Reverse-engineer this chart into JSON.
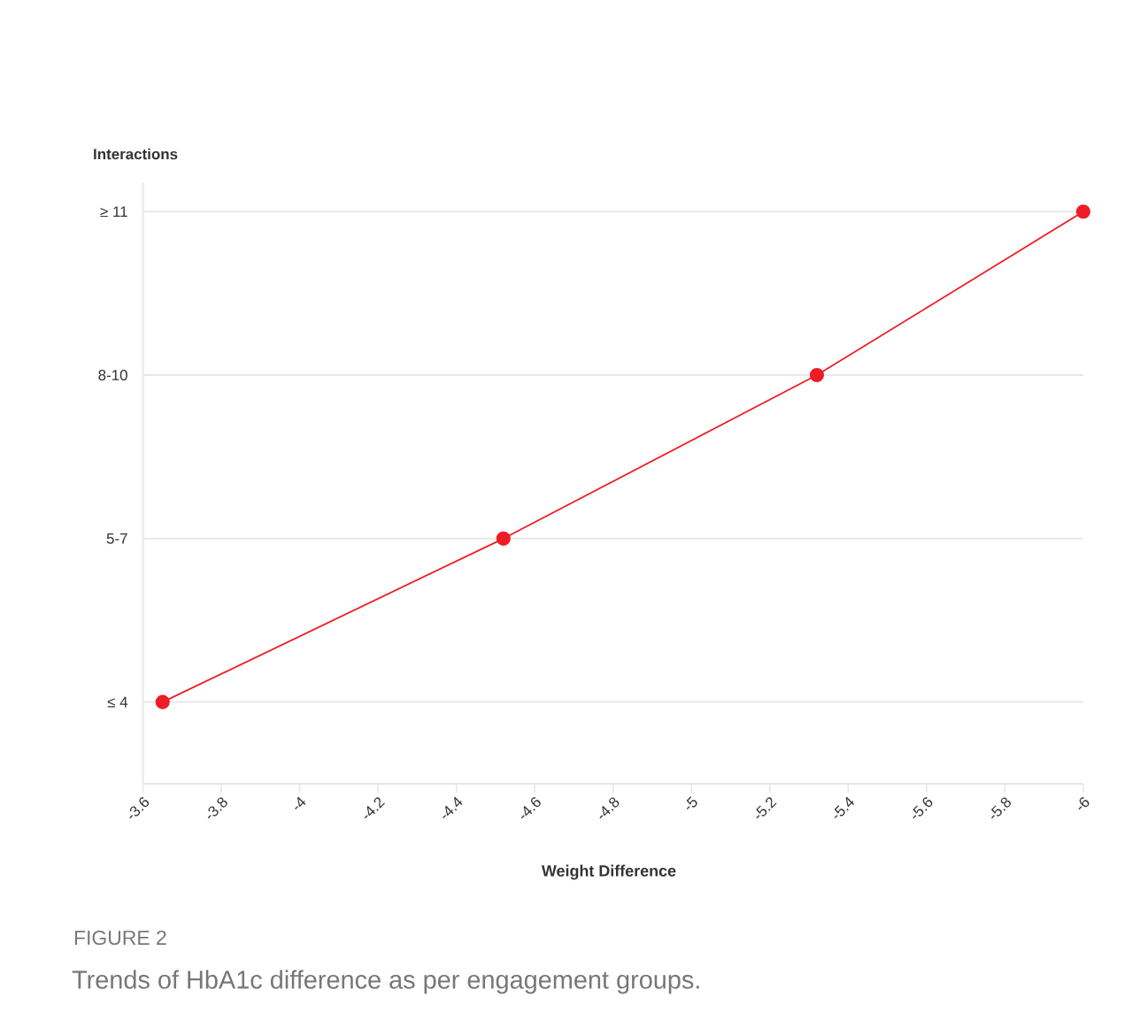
{
  "chart_data": {
    "type": "line",
    "orientation": "horizontal",
    "title": "FIGURE 2",
    "subtitle": "Trends of HbA1c difference as per engagement groups.",
    "xlabel": "Weight Difference",
    "ylabel": "Interactions",
    "categories": [
      "≥ 11",
      "8-10",
      "5-7",
      "≤ 4"
    ],
    "series": [
      {
        "color": "#ee1c24",
        "values": [
          -6.0,
          -5.32,
          -4.52,
          -3.65
        ]
      }
    ],
    "xlim": [
      -3.6,
      -6
    ],
    "xticks": [
      -3.6,
      -3.8,
      -4,
      -4.2,
      -4.4,
      -4.6,
      -4.8,
      -5,
      -5.2,
      -5.4,
      -5.6,
      -5.8,
      -6
    ],
    "grid": "y",
    "marker": "circle",
    "line_style": "solid"
  }
}
